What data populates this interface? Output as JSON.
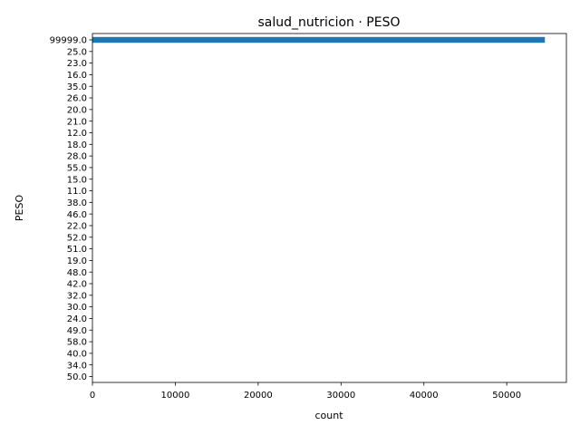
{
  "chart_data": {
    "type": "bar",
    "orientation": "horizontal",
    "title": "salud_nutricion · PESO",
    "xlabel": "count",
    "ylabel": "PESO",
    "xlim": [
      0,
      57200
    ],
    "xticks": [
      "0",
      "10000",
      "20000",
      "30000",
      "40000",
      "50000"
    ],
    "xtick_values": [
      0,
      10000,
      20000,
      30000,
      40000,
      50000
    ],
    "categories": [
      "99999.0",
      "25.0",
      "23.0",
      "16.0",
      "35.0",
      "26.0",
      "20.0",
      "21.0",
      "12.0",
      "18.0",
      "28.0",
      "55.0",
      "15.0",
      "11.0",
      "38.0",
      "46.0",
      "22.0",
      "52.0",
      "51.0",
      "19.0",
      "48.0",
      "42.0",
      "32.0",
      "30.0",
      "24.0",
      "49.0",
      "58.0",
      "40.0",
      "34.0",
      "50.0"
    ],
    "values": [
      54600,
      1,
      1,
      1,
      1,
      1,
      1,
      1,
      1,
      1,
      1,
      1,
      1,
      1,
      1,
      1,
      1,
      1,
      1,
      1,
      1,
      1,
      1,
      1,
      1,
      1,
      1,
      1,
      1,
      1
    ],
    "bar_color": "#1f77b4",
    "grid": false,
    "legend": "none"
  }
}
